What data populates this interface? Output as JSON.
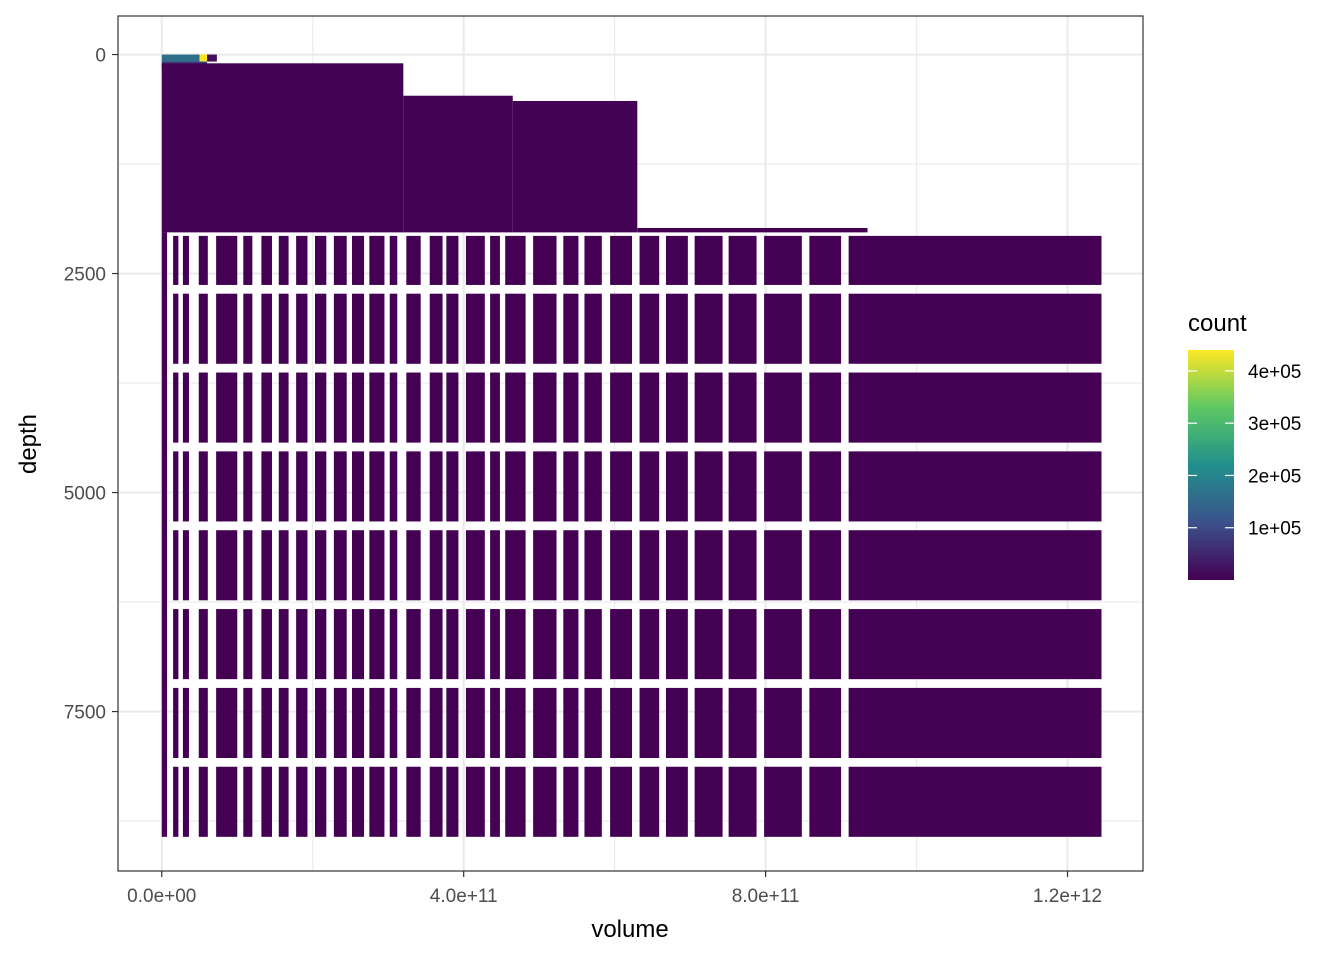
{
  "chart_data": {
    "type": "heatmap",
    "xlabel": "volume",
    "ylabel": "depth",
    "x_range": [
      -58000000000.0,
      1300000000000.0
    ],
    "y_range": [
      -440,
      9320
    ],
    "y_reversed": true,
    "grid": true,
    "theme": "bw",
    "x_ticks": [
      {
        "value": 0,
        "label": "0.0e+00"
      },
      {
        "value": 400000000000.0,
        "label": "4.0e+11"
      },
      {
        "value": 800000000000.0,
        "label": "8.0e+11"
      },
      {
        "value": 1200000000000.0,
        "label": "1.2e+12"
      }
    ],
    "y_ticks": [
      {
        "value": 0,
        "label": "0"
      },
      {
        "value": 2500,
        "label": "2500"
      },
      {
        "value": 5000,
        "label": "5000"
      },
      {
        "value": 7500,
        "label": "7500"
      }
    ],
    "fill_low_color": "#440154",
    "fill_colors": [
      "#440154",
      "#3b528b",
      "#21908c",
      "#5dc863",
      "#fde725"
    ],
    "upper_tiles": [
      {
        "x": [
          0,
          50000000000.0
        ],
        "y": [
          0,
          80
        ],
        "count": 160000
      },
      {
        "x": [
          50000000000.0,
          60000000000.0
        ],
        "y": [
          0,
          80
        ],
        "count": 440000
      },
      {
        "x": [
          60000000000.0,
          73000000000.0
        ],
        "y": [
          0,
          80
        ],
        "count": 20000
      },
      {
        "x": [
          0,
          60000000000.0
        ],
        "y": [
          80,
          180
        ],
        "count": 80000
      },
      {
        "x": [
          0,
          320000000000.0
        ],
        "y": [
          100,
          2030
        ],
        "count": 2000
      },
      {
        "x": [
          320000000000.0,
          465000000000.0
        ],
        "y": [
          470,
          2030
        ],
        "count": 1000
      },
      {
        "x": [
          465000000000.0,
          630000000000.0
        ],
        "y": [
          530,
          2030
        ],
        "count": 1000
      },
      {
        "x": [
          630000000000.0,
          935000000000.0
        ],
        "y": [
          1980,
          2030
        ],
        "count": 500
      }
    ],
    "lower_tiles": {
      "count": 300,
      "x_columns": [
        [
          15000000000.0,
          22000000000.0
        ],
        [
          28000000000.0,
          36000000000.0
        ],
        [
          49000000000.0,
          61000000000.0
        ],
        [
          72000000000.0,
          100000000000.0
        ],
        [
          108000000000.0,
          120000000000.0
        ],
        [
          132000000000.0,
          146000000000.0
        ],
        [
          155000000000.0,
          168000000000.0
        ],
        [
          178000000000.0,
          193000000000.0
        ],
        [
          203000000000.0,
          218000000000.0
        ],
        [
          228000000000.0,
          245000000000.0
        ],
        [
          252000000000.0,
          268000000000.0
        ],
        [
          275000000000.0,
          295000000000.0
        ],
        [
          302000000000.0,
          312000000000.0
        ],
        [
          324000000000.0,
          343000000000.0
        ],
        [
          355000000000.0,
          372000000000.0
        ],
        [
          377000000000.0,
          393000000000.0
        ],
        [
          403000000000.0,
          428000000000.0
        ],
        [
          435000000000.0,
          448000000000.0
        ],
        [
          455000000000.0,
          482000000000.0
        ],
        [
          492000000000.0,
          523000000000.0
        ],
        [
          532000000000.0,
          552000000000.0
        ],
        [
          560000000000.0,
          583000000000.0
        ],
        [
          594000000000.0,
          623000000000.0
        ],
        [
          633000000000.0,
          659000000000.0
        ],
        [
          668000000000.0,
          697000000000.0
        ],
        [
          706000000000.0,
          743000000000.0
        ],
        [
          751000000000.0,
          788000000000.0
        ],
        [
          798000000000.0,
          848000000000.0
        ],
        [
          858000000000.0,
          900000000000.0
        ],
        [
          910000000000.0,
          1245000000000.0
        ]
      ],
      "y_rows": [
        [
          2070,
          2630
        ],
        [
          2730,
          3530
        ],
        [
          3630,
          4430
        ],
        [
          4530,
          5330
        ],
        [
          5430,
          6230
        ],
        [
          6330,
          7130
        ],
        [
          7230,
          8030
        ],
        [
          8130,
          8930
        ]
      ],
      "first_column_x": [
        0,
        7000000000.0
      ],
      "first_column_y": [
        2030,
        8930
      ]
    },
    "legend": {
      "title": "count",
      "range": [
        0,
        440000
      ],
      "breaks": [
        100000,
        200000,
        300000,
        400000
      ],
      "labels": [
        "1e+05",
        "2e+05",
        "3e+05",
        "4e+05"
      ],
      "position": "right"
    }
  }
}
